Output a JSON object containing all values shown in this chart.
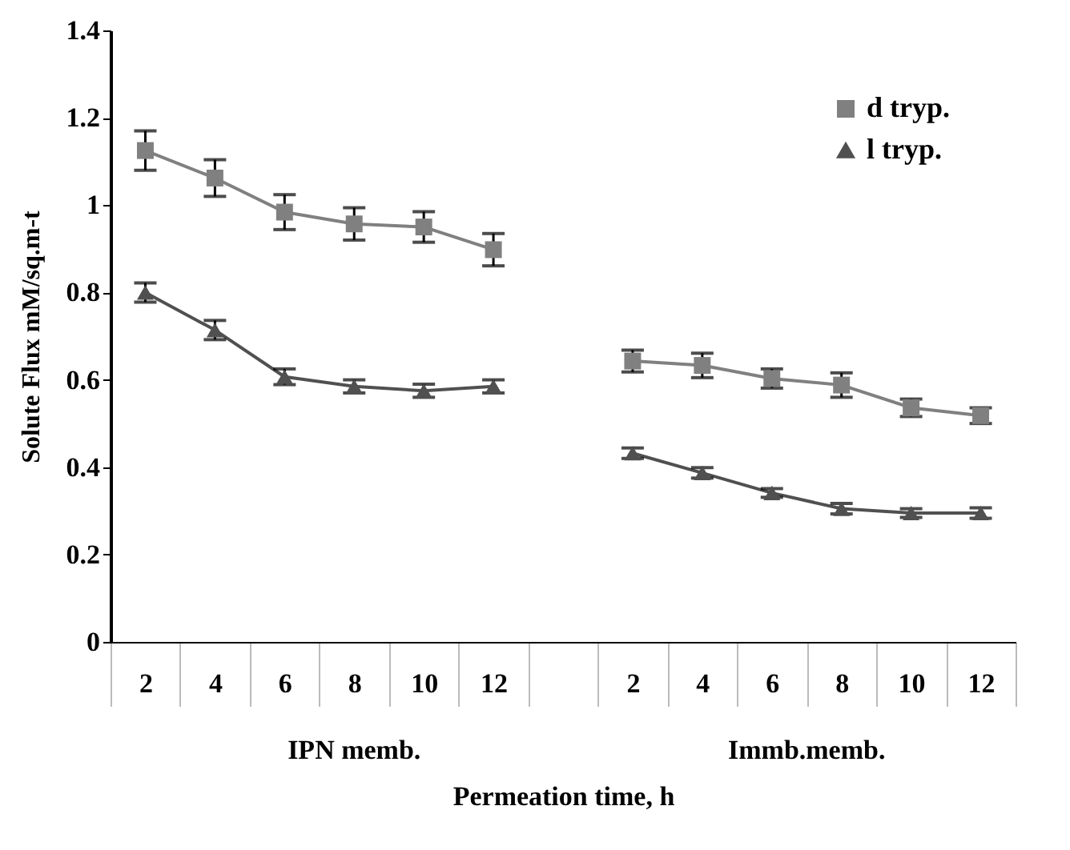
{
  "chart_data": {
    "type": "line",
    "xlabel": "Permeation time, h",
    "ylabel": "Solute Flux mM/sq.m-t",
    "categories": [
      "2",
      "4",
      "6",
      "8",
      "10",
      "12",
      null,
      "2",
      "4",
      "6",
      "8",
      "10",
      "12"
    ],
    "annotations": [
      "IPN memb.",
      "Immb.memb."
    ],
    "series": [
      {
        "name": "d tryp.",
        "color": "#808080",
        "marker": "square",
        "values": [
          1.125,
          1.062,
          0.984,
          0.957,
          0.95,
          0.898,
          null,
          0.643,
          0.633,
          0.603,
          0.588,
          0.536,
          0.518
        ],
        "errors": [
          0.045,
          0.042,
          0.04,
          0.037,
          0.035,
          0.037,
          null,
          0.025,
          0.028,
          0.022,
          0.028,
          0.02,
          0.018
        ]
      },
      {
        "name": "l tryp.",
        "color": "#505050",
        "marker": "triangle",
        "values": [
          0.8,
          0.714,
          0.607,
          0.585,
          0.575,
          0.585,
          null,
          0.432,
          0.387,
          0.341,
          0.305,
          0.295,
          0.295
        ],
        "errors": [
          0.022,
          0.022,
          0.018,
          0.015,
          0.015,
          0.015,
          null,
          0.012,
          0.012,
          0.01,
          0.012,
          0.01,
          0.012
        ]
      }
    ],
    "ylim": [
      0,
      1.4
    ],
    "yticks": [
      0,
      0.2,
      0.4,
      0.6,
      0.8,
      1,
      1.2,
      1.4
    ],
    "grid": false,
    "legend": "top right"
  }
}
